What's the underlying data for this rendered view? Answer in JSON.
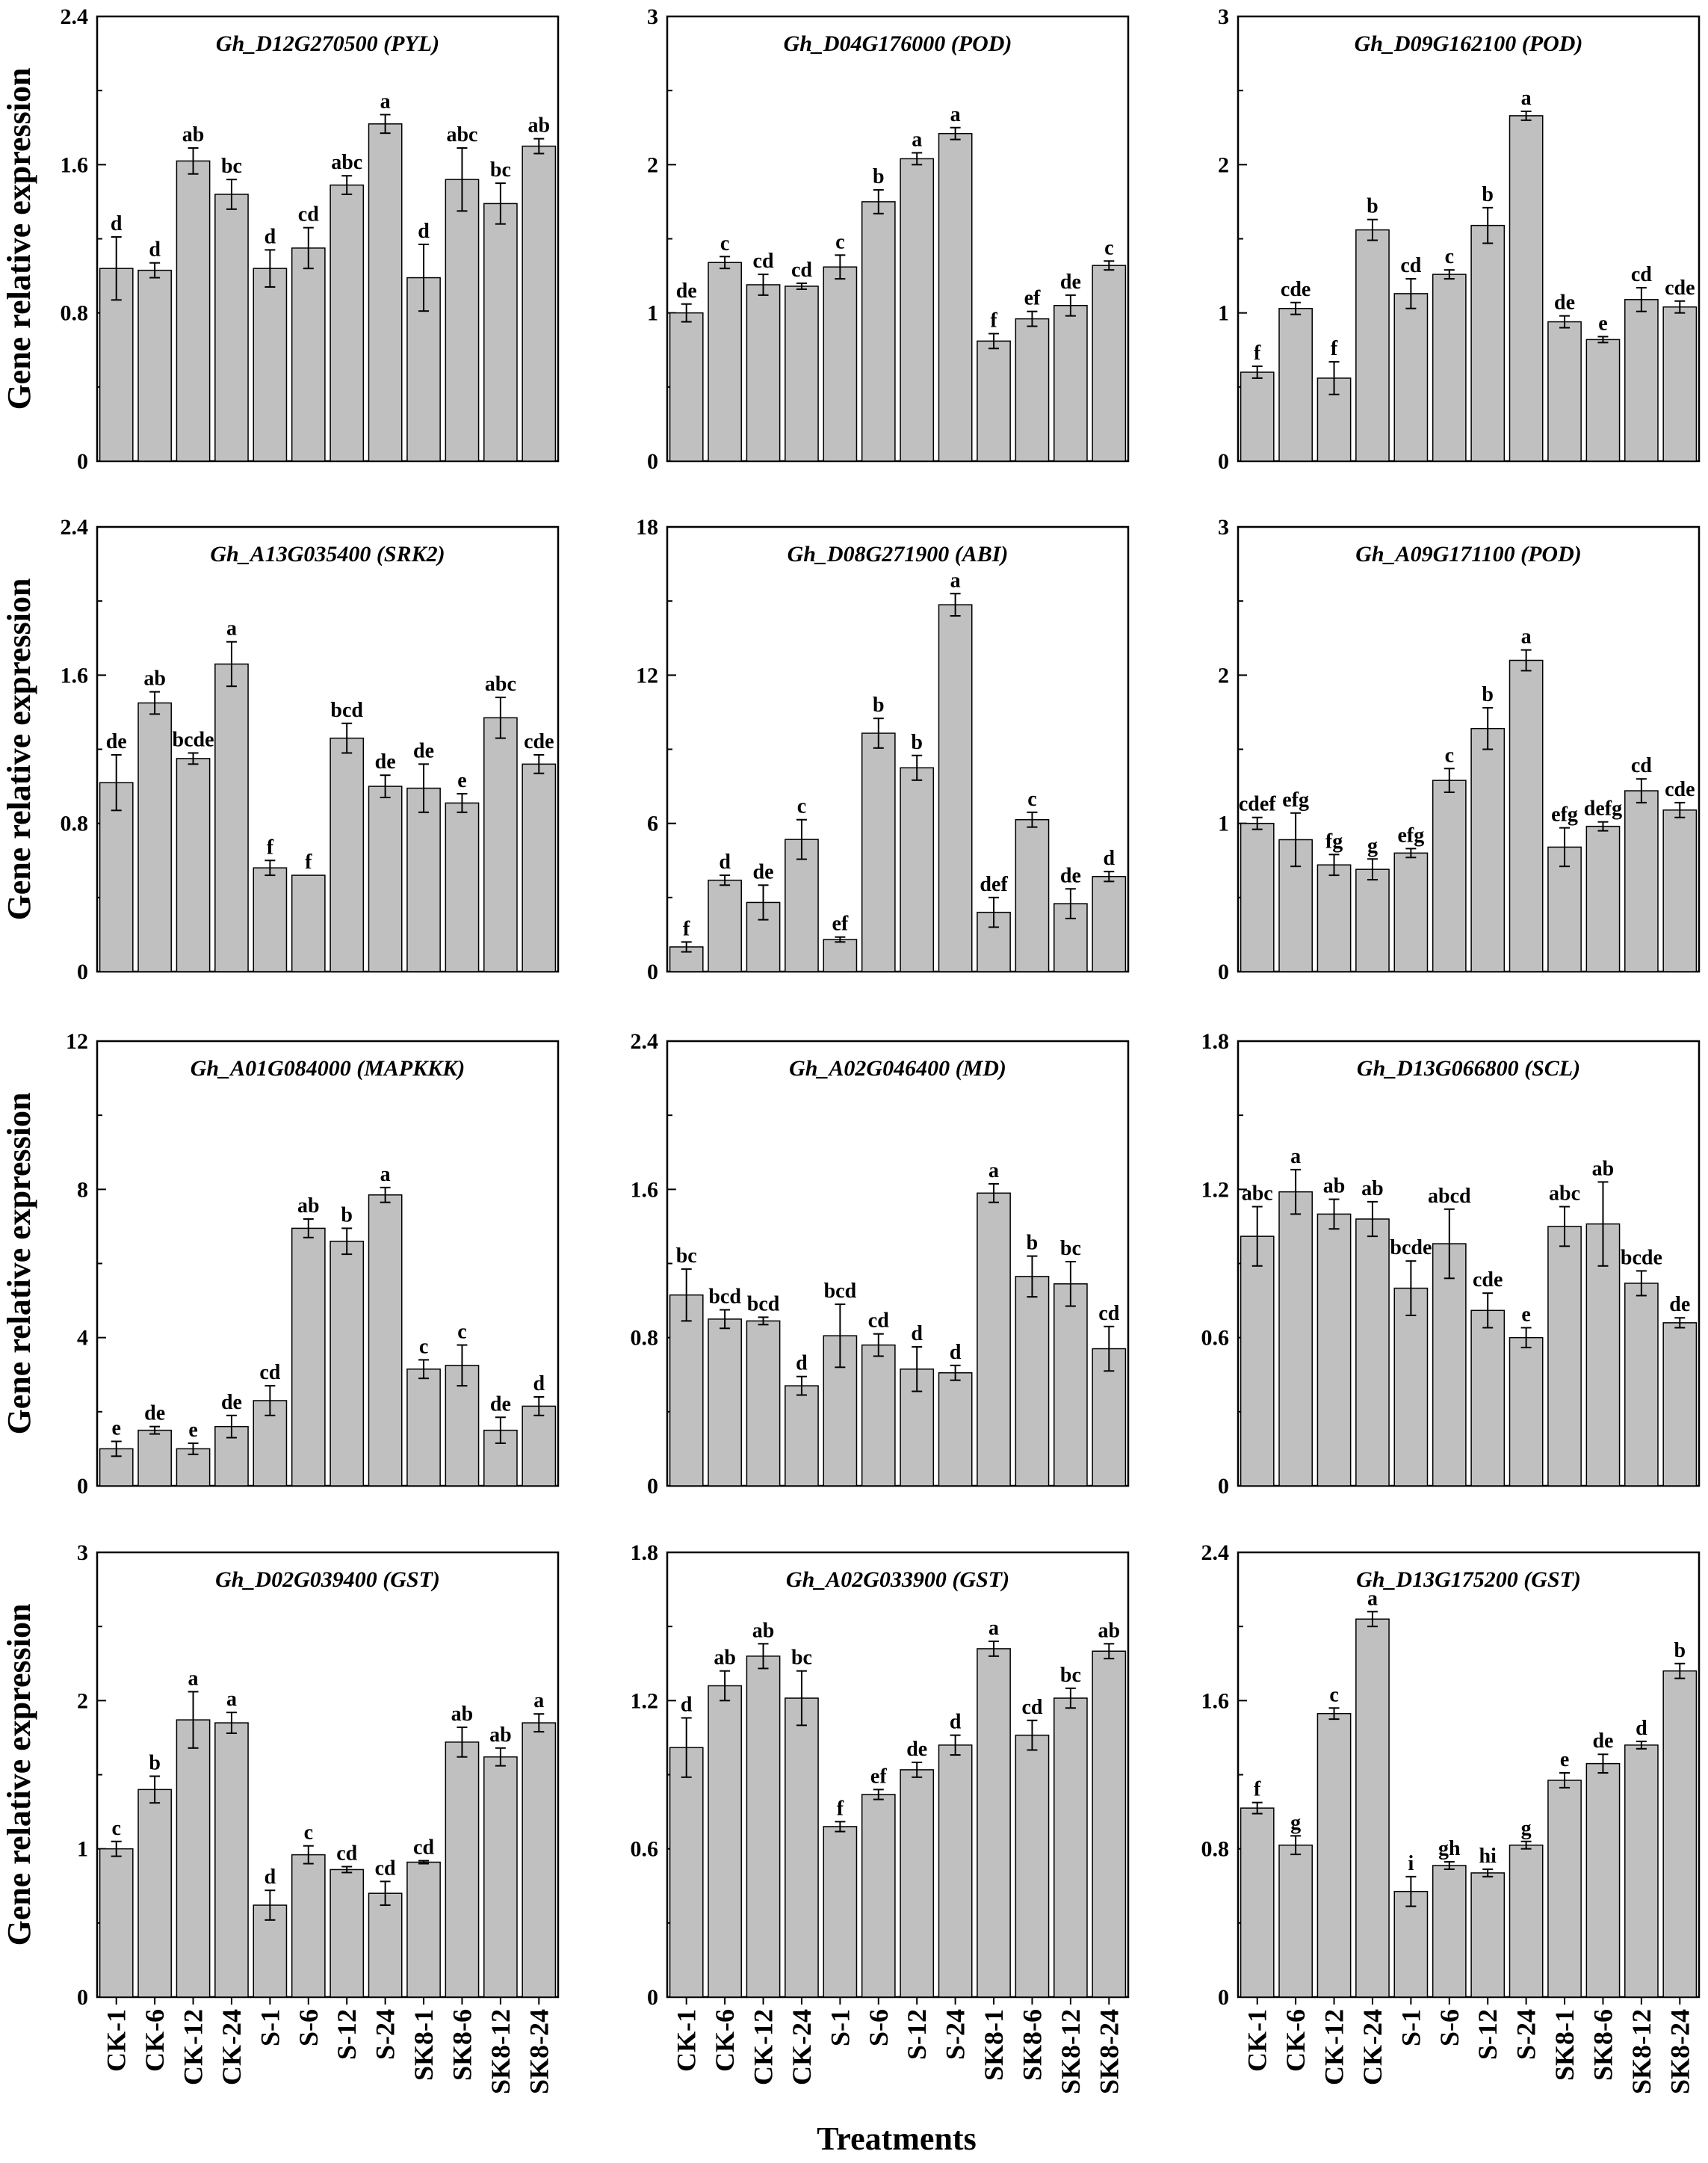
{
  "colors": {
    "bar": "#c0c0c0",
    "axis": "#000000",
    "background": "#ffffff"
  },
  "figure": {
    "ylabel": "Gene relative expression",
    "xlabel": "Treatments",
    "categories": [
      "CK-1",
      "CK-6",
      "CK-12",
      "CK-24",
      "S-1",
      "S-6",
      "S-12",
      "S-24",
      "SK8-1",
      "SK8-6",
      "SK8-12",
      "SK8-24"
    ]
  },
  "chart_data": [
    {
      "type": "bar",
      "title": "Gh_D12G270500 (PYL)",
      "ylim": [
        0,
        2.4
      ],
      "yticks": [
        "0",
        "0.8",
        "1.6",
        "2.4"
      ],
      "values": [
        1.04,
        1.03,
        1.62,
        1.44,
        1.04,
        1.15,
        1.49,
        1.82,
        0.99,
        1.52,
        1.39,
        1.7
      ],
      "errors": [
        0.17,
        0.04,
        0.07,
        0.08,
        0.1,
        0.11,
        0.05,
        0.05,
        0.18,
        0.17,
        0.11,
        0.04
      ],
      "labels": [
        "d",
        "d",
        "ab",
        "bc",
        "d",
        "cd",
        "abc",
        "a",
        "d",
        "abc",
        "bc",
        "ab"
      ]
    },
    {
      "type": "bar",
      "title": "Gh_D04G176000 (POD)",
      "ylim": [
        0,
        3
      ],
      "yticks": [
        "0",
        "1",
        "2",
        "3"
      ],
      "values": [
        1.0,
        1.34,
        1.19,
        1.18,
        1.31,
        1.75,
        2.04,
        2.21,
        0.81,
        0.96,
        1.05,
        1.32
      ],
      "errors": [
        0.06,
        0.04,
        0.07,
        0.02,
        0.08,
        0.08,
        0.04,
        0.04,
        0.05,
        0.05,
        0.07,
        0.03
      ],
      "labels": [
        "de",
        "c",
        "cd",
        "cd",
        "c",
        "b",
        "a",
        "a",
        "f",
        "ef",
        "de",
        "c"
      ]
    },
    {
      "type": "bar",
      "title": "Gh_D09G162100 (POD)",
      "ylim": [
        0,
        3
      ],
      "yticks": [
        "0",
        "1",
        "2",
        "3"
      ],
      "values": [
        0.6,
        1.03,
        0.56,
        1.56,
        1.13,
        1.26,
        1.59,
        2.33,
        0.94,
        0.82,
        1.09,
        1.04
      ],
      "errors": [
        0.04,
        0.04,
        0.11,
        0.07,
        0.1,
        0.03,
        0.12,
        0.03,
        0.04,
        0.02,
        0.08,
        0.04
      ],
      "labels": [
        "f",
        "cde",
        "f",
        "b",
        "cd",
        "c",
        "b",
        "a",
        "de",
        "e",
        "cd",
        "cde"
      ]
    },
    {
      "type": "bar",
      "title": "Gh_A13G035400 (SRK2)",
      "ylim": [
        0,
        2.4
      ],
      "yticks": [
        "0",
        "0.8",
        "1.6",
        "2.4"
      ],
      "values": [
        1.02,
        1.45,
        1.15,
        1.66,
        0.56,
        0.52,
        1.26,
        1.0,
        0.99,
        0.91,
        1.37,
        1.12
      ],
      "errors": [
        0.15,
        0.06,
        0.03,
        0.12,
        0.04,
        0.0,
        0.08,
        0.06,
        0.13,
        0.05,
        0.11,
        0.05
      ],
      "labels": [
        "de",
        "ab",
        "bcde",
        "a",
        "f",
        "f",
        "bcd",
        "de",
        "de",
        "e",
        "abc",
        "cde"
      ]
    },
    {
      "type": "bar",
      "title": "Gh_D08G271900 (ABI)",
      "ylim": [
        0,
        18
      ],
      "yticks": [
        "0",
        "6",
        "12",
        "18"
      ],
      "values": [
        1.0,
        3.7,
        2.8,
        5.35,
        1.3,
        9.65,
        8.25,
        14.85,
        2.4,
        6.15,
        2.75,
        3.85
      ],
      "errors": [
        0.2,
        0.2,
        0.7,
        0.8,
        0.1,
        0.6,
        0.5,
        0.45,
        0.6,
        0.3,
        0.6,
        0.2
      ],
      "labels": [
        "f",
        "d",
        "de",
        "c",
        "ef",
        "b",
        "b",
        "a",
        "def",
        "c",
        "de",
        "d"
      ]
    },
    {
      "type": "bar",
      "title": "Gh_A09G171100 (POD)",
      "ylim": [
        0,
        3
      ],
      "yticks": [
        "0",
        "1",
        "2",
        "3"
      ],
      "values": [
        1.0,
        0.89,
        0.72,
        0.69,
        0.8,
        1.29,
        1.64,
        2.1,
        0.84,
        0.98,
        1.22,
        1.09
      ],
      "errors": [
        0.04,
        0.18,
        0.07,
        0.07,
        0.03,
        0.08,
        0.14,
        0.07,
        0.13,
        0.03,
        0.08,
        0.05
      ],
      "labels": [
        "cdef",
        "efg",
        "fg",
        "g",
        "efg",
        "c",
        "b",
        "a",
        "efg",
        "defg",
        "cd",
        "cde"
      ]
    },
    {
      "type": "bar",
      "title": "Gh_A01G084000 (MAPKKK)",
      "ylim": [
        0,
        12
      ],
      "yticks": [
        "0",
        "4",
        "8",
        "12"
      ],
      "values": [
        1.0,
        1.5,
        1.0,
        1.6,
        2.3,
        6.95,
        6.6,
        7.85,
        3.15,
        3.25,
        1.5,
        2.15
      ],
      "errors": [
        0.2,
        0.1,
        0.15,
        0.3,
        0.4,
        0.25,
        0.35,
        0.2,
        0.25,
        0.55,
        0.35,
        0.25
      ],
      "labels": [
        "e",
        "de",
        "e",
        "de",
        "cd",
        "ab",
        "b",
        "a",
        "c",
        "c",
        "de",
        "d"
      ]
    },
    {
      "type": "bar",
      "title": "Gh_A02G046400 (MD)",
      "ylim": [
        0,
        2.4
      ],
      "yticks": [
        "0",
        "0.8",
        "1.6",
        "2.4"
      ],
      "values": [
        1.03,
        0.9,
        0.89,
        0.54,
        0.81,
        0.76,
        0.63,
        0.61,
        1.58,
        1.13,
        1.09,
        0.74
      ],
      "errors": [
        0.14,
        0.05,
        0.02,
        0.05,
        0.17,
        0.06,
        0.12,
        0.04,
        0.05,
        0.11,
        0.12,
        0.12
      ],
      "labels": [
        "bc",
        "bcd",
        "bcd",
        "d",
        "bcd",
        "cd",
        "d",
        "d",
        "a",
        "b",
        "bc",
        "cd"
      ]
    },
    {
      "type": "bar",
      "title": "Gh_D13G066800 (SCL)",
      "ylim": [
        0,
        1.8
      ],
      "yticks": [
        "0",
        "0.6",
        "1.2",
        "1.8"
      ],
      "values": [
        1.01,
        1.19,
        1.1,
        1.08,
        0.8,
        0.98,
        0.71,
        0.6,
        1.05,
        1.06,
        0.82,
        0.66
      ],
      "errors": [
        0.12,
        0.09,
        0.06,
        0.07,
        0.11,
        0.14,
        0.07,
        0.04,
        0.08,
        0.17,
        0.05,
        0.02
      ],
      "labels": [
        "abc",
        "a",
        "ab",
        "ab",
        "bcde",
        "abcd",
        "cde",
        "e",
        "abc",
        "ab",
        "bcde",
        "de"
      ]
    },
    {
      "type": "bar",
      "title": "Gh_D02G039400 (GST)",
      "ylim": [
        0,
        3
      ],
      "yticks": [
        "0",
        "1",
        "2",
        "3"
      ],
      "values": [
        1.0,
        1.4,
        1.87,
        1.85,
        0.62,
        0.96,
        0.86,
        0.7,
        0.91,
        1.72,
        1.62,
        1.85
      ],
      "errors": [
        0.05,
        0.09,
        0.19,
        0.07,
        0.1,
        0.06,
        0.02,
        0.08,
        0.01,
        0.1,
        0.06,
        0.06
      ],
      "labels": [
        "c",
        "b",
        "a",
        "a",
        "d",
        "c",
        "cd",
        "cd",
        "cd",
        "ab",
        "ab",
        "a"
      ]
    },
    {
      "type": "bar",
      "title": "Gh_A02G033900 (GST)",
      "ylim": [
        0,
        1.8
      ],
      "yticks": [
        "0",
        "0.6",
        "1.2",
        "1.8"
      ],
      "values": [
        1.01,
        1.26,
        1.38,
        1.21,
        0.69,
        0.82,
        0.92,
        1.02,
        1.41,
        1.06,
        1.21,
        1.4
      ],
      "errors": [
        0.12,
        0.06,
        0.05,
        0.11,
        0.02,
        0.02,
        0.03,
        0.04,
        0.03,
        0.06,
        0.04,
        0.03
      ],
      "labels": [
        "d",
        "ab",
        "ab",
        "bc",
        "f",
        "ef",
        "de",
        "d",
        "a",
        "cd",
        "bc",
        "ab"
      ]
    },
    {
      "type": "bar",
      "title": "Gh_D13G175200 (GST)",
      "ylim": [
        0,
        2.4
      ],
      "yticks": [
        "0",
        "0.8",
        "1.6",
        "2.4"
      ],
      "values": [
        1.02,
        0.82,
        1.53,
        2.04,
        0.57,
        0.71,
        0.67,
        0.82,
        1.17,
        1.26,
        1.36,
        1.76
      ],
      "errors": [
        0.03,
        0.05,
        0.03,
        0.04,
        0.08,
        0.02,
        0.02,
        0.02,
        0.04,
        0.05,
        0.02,
        0.04
      ],
      "labels": [
        "f",
        "g",
        "c",
        "a",
        "i",
        "gh",
        "hi",
        "g",
        "e",
        "de",
        "d",
        "b"
      ]
    }
  ]
}
